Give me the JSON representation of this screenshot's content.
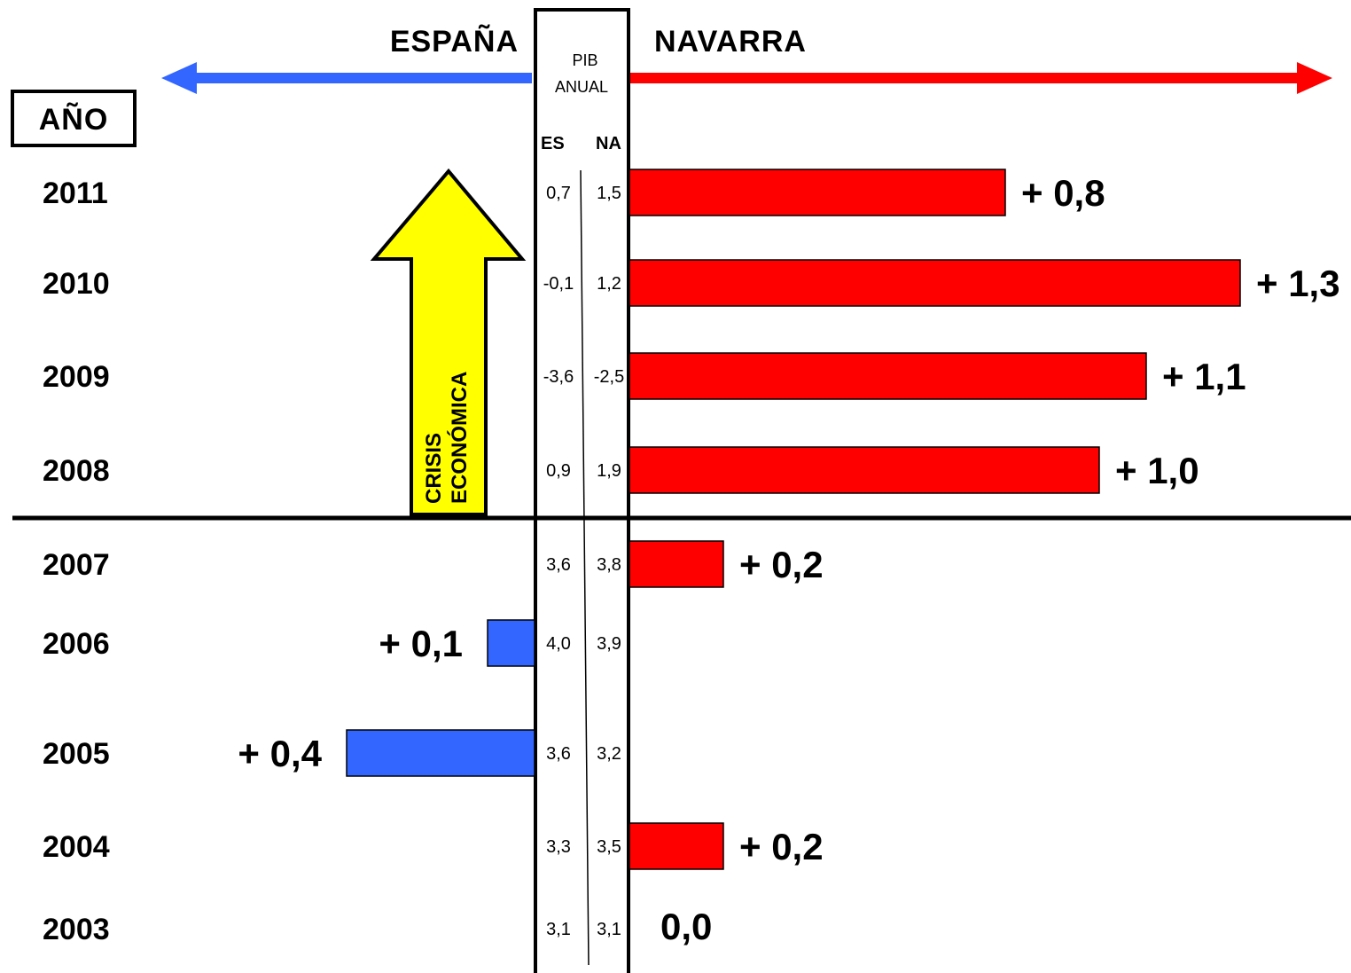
{
  "header": {
    "left_region": "ESPAÑA",
    "right_region": "NAVARRA",
    "year_box": "AÑO",
    "center_title_line1": "PIB",
    "center_title_line2": "ANUAL",
    "col_es": "ES",
    "col_na": "NA"
  },
  "annotation": {
    "line1": "CRISIS",
    "line2": "ECONÓMICA"
  },
  "colors": {
    "spain": "#3366ff",
    "navarra": "#ff0000",
    "crisis_arrow": "#ffff00"
  },
  "chart_data": {
    "type": "bar",
    "categories": [
      "2011",
      "2010",
      "2009",
      "2008",
      "2007",
      "2006",
      "2005",
      "2004",
      "2003"
    ],
    "series": [
      {
        "name": "ES",
        "values": [
          0.7,
          -0.1,
          -3.6,
          0.9,
          3.6,
          4.0,
          3.6,
          3.3,
          3.1
        ],
        "labels": [
          "0,7",
          "-0,1",
          "-3,6",
          "0,9",
          "3,6",
          "4,0",
          "3,6",
          "3,3",
          "3,1"
        ]
      },
      {
        "name": "NA",
        "values": [
          1.5,
          1.2,
          -2.5,
          1.9,
          3.8,
          3.9,
          3.2,
          3.5,
          3.1
        ],
        "labels": [
          "1,5",
          "1,2",
          "-2,5",
          "1,9",
          "3,8",
          "3,9",
          "3,2",
          "3,5",
          "3,1"
        ]
      }
    ],
    "difference": {
      "values": [
        0.8,
        1.3,
        1.1,
        1.0,
        0.2,
        0.1,
        0.4,
        0.2,
        0.0
      ],
      "side": [
        "NAVARRA",
        "NAVARRA",
        "NAVARRA",
        "NAVARRA",
        "NAVARRA",
        "ESPAÑA",
        "ESPAÑA",
        "NAVARRA",
        "none"
      ],
      "labels": [
        "+ 0,8",
        "+ 1,3",
        "+ 1,1",
        "+ 1,0",
        "+ 0,2",
        "+ 0,1",
        "+ 0,4",
        "+ 0,2",
        "0,0"
      ]
    }
  }
}
